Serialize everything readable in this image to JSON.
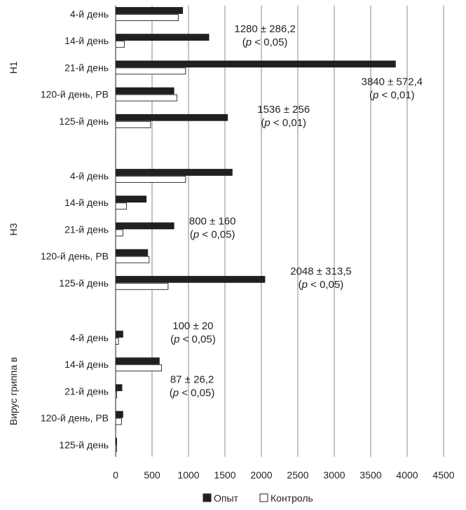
{
  "chart_data": {
    "type": "bar",
    "orientation": "horizontal",
    "xlim": [
      0,
      4500
    ],
    "x_ticks": [
      "0",
      "500",
      "1000",
      "1500",
      "2000",
      "2500",
      "3000",
      "3500",
      "4000",
      "4500"
    ],
    "grid": "vertical",
    "legend_position": "bottom",
    "series": [
      {
        "name": "Опыт",
        "color": "#231f20"
      },
      {
        "name": "Контроль",
        "color": "#ffffff"
      }
    ],
    "groups": [
      {
        "label": "H1",
        "categories": [
          {
            "label": "4-й день",
            "values": [
              920,
              860
            ]
          },
          {
            "label": "14-й день",
            "values": [
              1280,
              120
            ],
            "annotation": [
              "1280 ± 286,2",
              "(p < 0,05)"
            ]
          },
          {
            "label": "21-й день",
            "values": [
              3840,
              960
            ],
            "annotation": [
              "3840 ± 572,4",
              "(p < 0,01)"
            ]
          },
          {
            "label": "120-й день, РВ",
            "values": [
              800,
              840
            ]
          },
          {
            "label": "125-й день",
            "values": [
              1536,
              480
            ],
            "annotation": [
              "1536 ± 256",
              "(p < 0,01)"
            ]
          }
        ]
      },
      {
        "label": "H3",
        "categories": [
          {
            "label": "4-й день",
            "values": [
              1600,
              960
            ]
          },
          {
            "label": "14-й день",
            "values": [
              420,
              150
            ]
          },
          {
            "label": "21-й день",
            "values": [
              800,
              100
            ],
            "annotation": [
              "800 ± 160",
              "(p < 0,05)"
            ]
          },
          {
            "label": "120-й день, РВ",
            "values": [
              440,
              460
            ]
          },
          {
            "label": "125-й день",
            "values": [
              2048,
              720
            ],
            "annotation": [
              "2048 ± 313,5",
              "(p < 0,05)"
            ]
          }
        ]
      },
      {
        "label": "Вирус гриппа в",
        "categories": [
          {
            "label": "4-й день",
            "values": [
              100,
              40
            ],
            "annotation": [
              "100 ± 20",
              "(p < 0,05)"
            ]
          },
          {
            "label": "14-й день",
            "values": [
              600,
              630
            ]
          },
          {
            "label": "21-й день",
            "values": [
              87,
              15
            ],
            "annotation": [
              "87 ± 26,2",
              "(p < 0,05)"
            ]
          },
          {
            "label": "120-й день, РВ",
            "values": [
              100,
              80
            ]
          },
          {
            "label": "125-й день",
            "values": [
              15,
              10
            ]
          }
        ]
      }
    ]
  }
}
